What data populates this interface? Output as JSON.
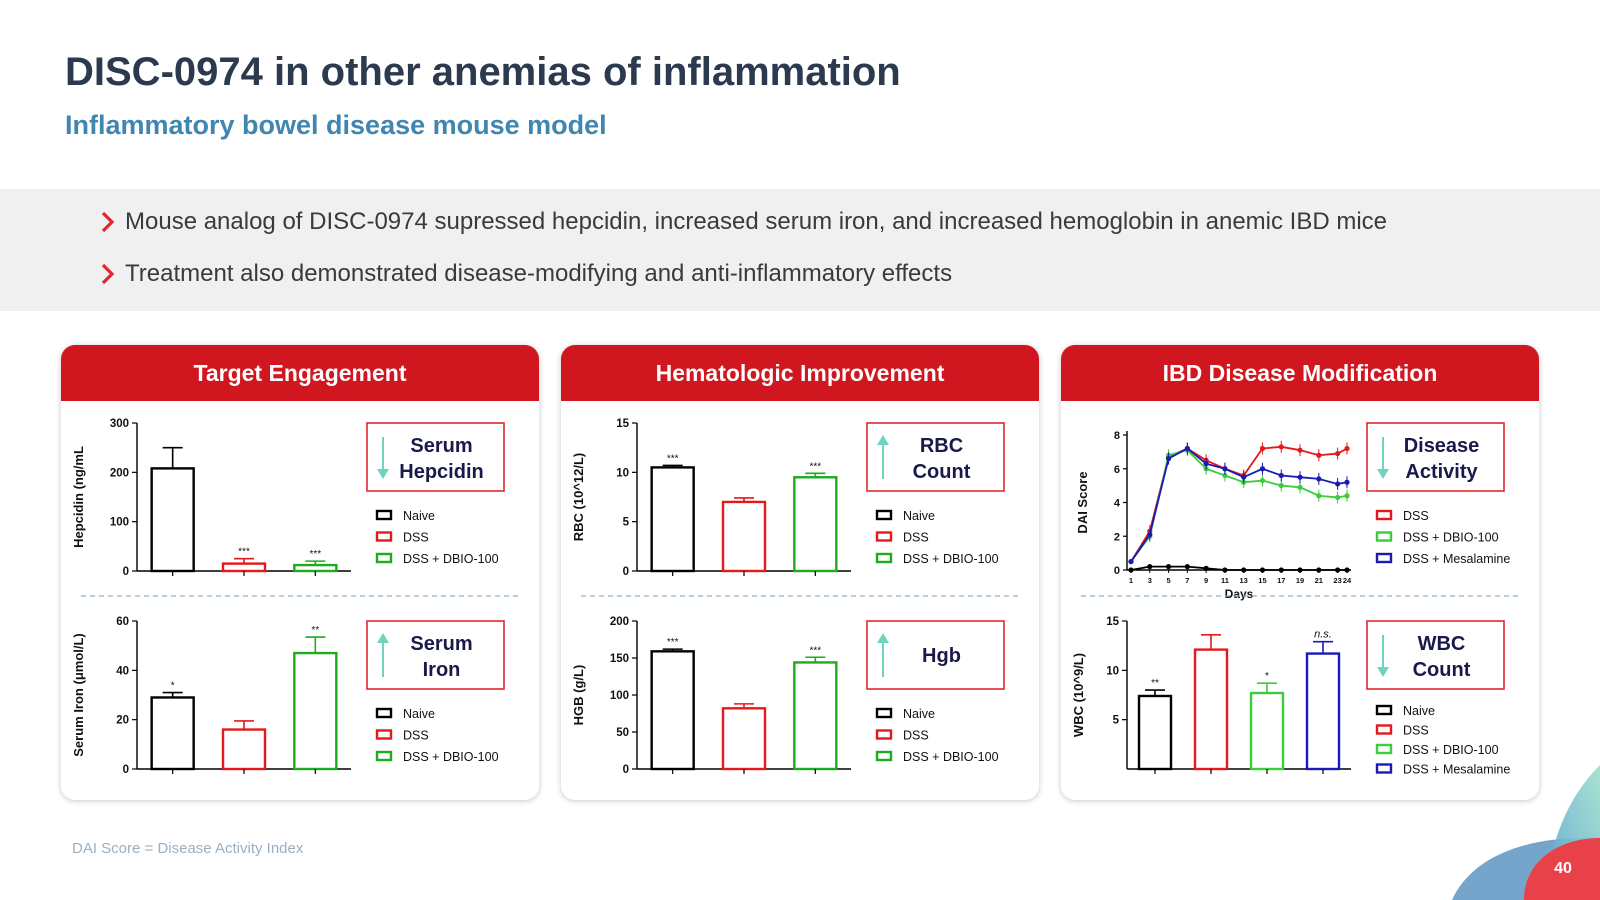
{
  "header": {
    "title": "DISC-0974 in other anemias of inflammation",
    "subtitle": "Inflammatory bowel disease mouse model"
  },
  "bullets": [
    "Mouse analog of DISC-0974 supressed hepcidin, increased serum iron, and increased hemoglobin in anemic IBD mice",
    "Treatment also demonstrated disease-modifying and anti-inflammatory effects"
  ],
  "panels": [
    {
      "title": "Target Engagement"
    },
    {
      "title": "Hematologic Improvement"
    },
    {
      "title": "IBD Disease Modification"
    }
  ],
  "footnote": "DAI Score = Disease Activity Index",
  "page_number": "40",
  "colors": {
    "title": "#2b3a4e",
    "subtitle": "#3f86b0",
    "panel_header": "#d0161e",
    "naive": "#000000",
    "dss": "#e3191c",
    "dss_dbio": "#1faa1f",
    "dss_dbio_light": "#3ccc3c",
    "dss_mesalamine": "#1a1ab5",
    "arrow": "#6fd3bf"
  },
  "chart_data": [
    {
      "type": "bar",
      "ylabel": "Hepcidin (ng/mL",
      "ylim": [
        0,
        300
      ],
      "yticks": [
        0,
        100,
        200,
        300
      ],
      "categories": [
        "Naive",
        "DSS",
        "DSS + DBIO-100"
      ],
      "values": [
        208,
        15,
        12
      ],
      "errors": [
        42,
        10,
        8
      ],
      "significance": [
        "",
        "***",
        "***"
      ],
      "box_label": [
        "Serum",
        "Hepcidin"
      ],
      "arrow": "down",
      "legend": [
        "Naive",
        "DSS",
        "DSS + DBIO-100"
      ]
    },
    {
      "type": "bar",
      "ylabel": "Serum Iron (μmol/L)",
      "ylim": [
        0,
        60
      ],
      "yticks": [
        0,
        20,
        40,
        60
      ],
      "categories": [
        "Naive",
        "DSS",
        "DSS + DBIO-100"
      ],
      "values": [
        29,
        16,
        47
      ],
      "errors": [
        2,
        3.5,
        6.5
      ],
      "significance": [
        "*",
        "",
        "**"
      ],
      "box_label": [
        "Serum",
        "Iron"
      ],
      "arrow": "up",
      "legend": [
        "Naive",
        "DSS",
        "DSS + DBIO-100"
      ]
    },
    {
      "type": "bar",
      "ylabel": "RBC (10^12/L)",
      "ylim": [
        0,
        15
      ],
      "yticks": [
        0,
        5,
        10,
        15
      ],
      "categories": [
        "Naive",
        "DSS",
        "DSS + DBIO-100"
      ],
      "values": [
        10.5,
        7,
        9.5
      ],
      "errors": [
        0.2,
        0.4,
        0.4
      ],
      "significance": [
        "***",
        "",
        "***"
      ],
      "box_label": [
        "RBC",
        "Count"
      ],
      "arrow": "up",
      "legend": [
        "Naive",
        "DSS",
        "DSS + DBIO-100"
      ]
    },
    {
      "type": "bar",
      "ylabel": "HGB (g/L)",
      "ylim": [
        0,
        200
      ],
      "yticks": [
        0,
        50,
        100,
        150,
        200
      ],
      "categories": [
        "Naive",
        "DSS",
        "DSS + DBIO-100"
      ],
      "values": [
        159,
        82,
        144
      ],
      "errors": [
        3,
        6,
        7
      ],
      "significance": [
        "***",
        "",
        "***"
      ],
      "box_label": [
        "Hgb"
      ],
      "arrow": "up",
      "legend": [
        "Naive",
        "DSS",
        "DSS + DBIO-100"
      ]
    },
    {
      "type": "line",
      "ylabel": "DAI Score",
      "xlabel": "Days",
      "ylim": [
        0,
        8
      ],
      "yticks": [
        0,
        2,
        4,
        6,
        8
      ],
      "xlim": [
        1,
        24
      ],
      "xticks": [
        1,
        3,
        5,
        7,
        9,
        11,
        13,
        15,
        17,
        19,
        21,
        23,
        24
      ],
      "series": [
        {
          "name": "Naive",
          "x": [
            1,
            3,
            5,
            7,
            9,
            11,
            13,
            15,
            17,
            19,
            21,
            23,
            24
          ],
          "y": [
            0,
            0.2,
            0.2,
            0.2,
            0.1,
            0,
            0,
            0,
            0,
            0,
            0,
            0,
            0
          ]
        },
        {
          "name": "DSS",
          "x": [
            1,
            3,
            5,
            7,
            9,
            11,
            13,
            15,
            17,
            19,
            21,
            23,
            24
          ],
          "y": [
            0.5,
            2.3,
            6.7,
            7.2,
            6.5,
            6.0,
            5.6,
            7.2,
            7.3,
            7.1,
            6.8,
            6.9,
            7.2
          ]
        },
        {
          "name": "DSS + DBIO-100",
          "x": [
            1,
            3,
            5,
            7,
            9,
            11,
            13,
            15,
            17,
            19,
            21,
            23,
            24
          ],
          "y": [
            0.5,
            2.0,
            6.8,
            7.1,
            6.0,
            5.6,
            5.2,
            5.3,
            5.0,
            4.9,
            4.4,
            4.3,
            4.4
          ]
        },
        {
          "name": "DSS + Mesalamine",
          "x": [
            1,
            3,
            5,
            7,
            9,
            11,
            13,
            15,
            17,
            19,
            21,
            23,
            24
          ],
          "y": [
            0.5,
            2.1,
            6.6,
            7.2,
            6.3,
            6.0,
            5.5,
            6.0,
            5.6,
            5.5,
            5.4,
            5.1,
            5.2
          ]
        }
      ],
      "box_label": [
        "Disease",
        "Activity"
      ],
      "arrow": "down",
      "legend": [
        "DSS",
        "DSS + DBIO-100",
        "DSS + Mesalamine"
      ]
    },
    {
      "type": "bar",
      "ylabel": "WBC (10^9/L)",
      "ylim": [
        0,
        15
      ],
      "yticks": [
        5,
        10,
        15
      ],
      "categories": [
        "Naive",
        "DSS",
        "DSS + DBIO-100",
        "DSS + Mesalamine"
      ],
      "values": [
        7.4,
        12.1,
        7.7,
        11.7
      ],
      "errors": [
        0.6,
        1.5,
        1.0,
        1.2
      ],
      "significance": [
        "**",
        "",
        "*",
        "n.s."
      ],
      "box_label": [
        "WBC",
        "Count"
      ],
      "arrow": "down",
      "legend": [
        "Naive",
        "DSS",
        "DSS + DBIO-100",
        "DSS + Mesalamine"
      ]
    }
  ]
}
